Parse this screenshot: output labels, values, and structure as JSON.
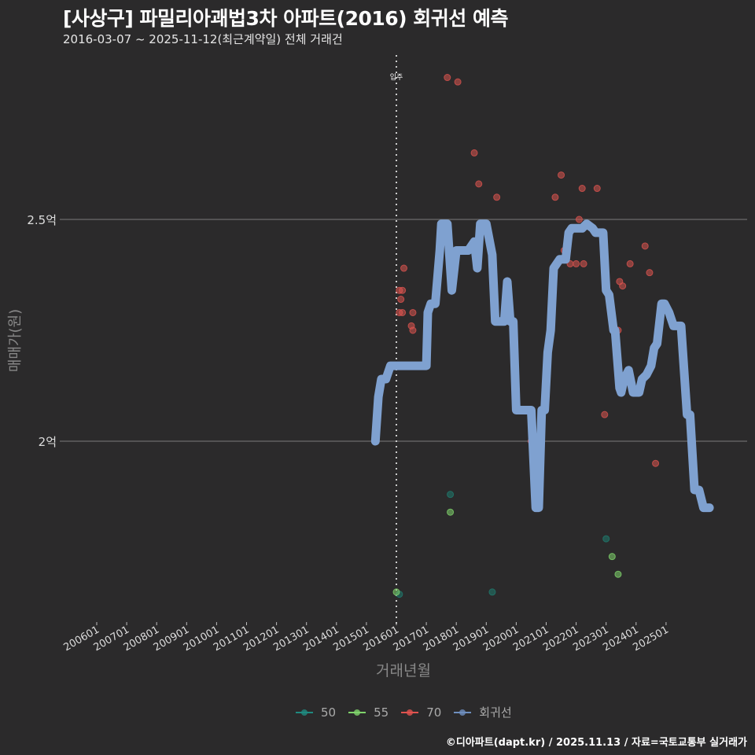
{
  "header": {
    "title": "[사상구] 파밀리아괘법3차 아파트(2016) 회귀선 예측",
    "subtitle": "2016-03-07 ~ 2025-11-12(최근계약일) 전체 거래건"
  },
  "caption": "©디아파트(dapt.kr) / 2025.11.13 / 자료=국토교통부 실거래가",
  "colors": {
    "background": "#2b2a2b",
    "s50": "#1f7a6e",
    "s55": "#7fd36b",
    "s70": "#d9534f",
    "regression": "#7fa1d0",
    "grid": "#6b6b6b",
    "vline": "#cccccc"
  },
  "legend": [
    {
      "label": "50",
      "color": "#1f8a80"
    },
    {
      "label": "55",
      "color": "#7fd36b"
    },
    {
      "label": "70",
      "color": "#e0534f"
    },
    {
      "label": "회귀선",
      "color": "#6f8fbf"
    }
  ],
  "chart_data": {
    "type": "scatter",
    "title": "[사상구] 파밀리아괘법3차 아파트(2016) 회귀선 예측",
    "subtitle": "2016-03-07 ~ 2025-11-12(최근계약일) 전체 거래건",
    "xlabel": "거래년월",
    "ylabel": "매매가(원)",
    "x_ticks": [
      "200601",
      "200701",
      "200801",
      "200901",
      "201001",
      "201101",
      "201201",
      "201301",
      "201401",
      "201501",
      "201601",
      "201701",
      "201801",
      "201901",
      "202001",
      "202101",
      "202201",
      "202301",
      "202401",
      "202501"
    ],
    "y_ticks": [
      {
        "label": "2억",
        "value": 2.0
      },
      {
        "label": "2.5억",
        "value": 2.5
      }
    ],
    "ylim": [
      1.6,
      2.9
    ],
    "units": "억원",
    "annotation": {
      "label": "입주",
      "x": 2016.0
    },
    "legend_position": "bottom",
    "series": [
      {
        "name": "50",
        "type": "scatter",
        "points": [
          [
            2017.8,
            1.88
          ],
          [
            2019.2,
            1.66
          ],
          [
            2023.0,
            1.78
          ],
          [
            2016.1,
            1.655
          ]
        ]
      },
      {
        "name": "55",
        "type": "scatter",
        "points": [
          [
            2017.8,
            1.84
          ],
          [
            2023.2,
            1.74
          ],
          [
            2023.4,
            1.7
          ],
          [
            2016.0,
            1.66
          ]
        ]
      },
      {
        "name": "70",
        "type": "scatter",
        "points": [
          [
            2017.7,
            2.82
          ],
          [
            2018.05,
            2.81
          ],
          [
            2018.6,
            2.65
          ],
          [
            2018.75,
            2.58
          ],
          [
            2019.35,
            2.55
          ],
          [
            2016.1,
            2.34
          ],
          [
            2016.2,
            2.34
          ],
          [
            2016.15,
            2.32
          ],
          [
            2016.1,
            2.29
          ],
          [
            2016.2,
            2.29
          ],
          [
            2016.25,
            2.39
          ],
          [
            2016.5,
            2.26
          ],
          [
            2016.55,
            2.25
          ],
          [
            2016.55,
            2.29
          ],
          [
            2020.5,
            2.0
          ],
          [
            2021.3,
            2.55
          ],
          [
            2021.5,
            2.6
          ],
          [
            2021.6,
            2.43
          ],
          [
            2021.8,
            2.4
          ],
          [
            2022.0,
            2.4
          ],
          [
            2022.25,
            2.4
          ],
          [
            2022.1,
            2.5
          ],
          [
            2022.2,
            2.57
          ],
          [
            2022.7,
            2.57
          ],
          [
            2022.95,
            2.06
          ],
          [
            2023.0,
            2.36
          ],
          [
            2023.4,
            2.25
          ],
          [
            2023.45,
            2.36
          ],
          [
            2023.55,
            2.35
          ],
          [
            2023.8,
            2.4
          ],
          [
            2024.3,
            2.44
          ],
          [
            2024.45,
            2.38
          ],
          [
            2024.65,
            1.95
          ]
        ]
      },
      {
        "name": "회귀선",
        "type": "line",
        "points": [
          [
            2015.3,
            2.0
          ],
          [
            2015.4,
            2.1
          ],
          [
            2015.5,
            2.14
          ],
          [
            2015.65,
            2.14
          ],
          [
            2015.8,
            2.17
          ],
          [
            2016.0,
            2.17
          ],
          [
            2017.0,
            2.17
          ],
          [
            2017.05,
            2.29
          ],
          [
            2017.15,
            2.31
          ],
          [
            2017.3,
            2.31
          ],
          [
            2017.45,
            2.43
          ],
          [
            2017.5,
            2.49
          ],
          [
            2017.7,
            2.49
          ],
          [
            2017.85,
            2.34
          ],
          [
            2017.95,
            2.4
          ],
          [
            2018.0,
            2.43
          ],
          [
            2018.4,
            2.43
          ],
          [
            2018.6,
            2.45
          ],
          [
            2018.7,
            2.39
          ],
          [
            2018.8,
            2.49
          ],
          [
            2019.0,
            2.49
          ],
          [
            2019.2,
            2.42
          ],
          [
            2019.3,
            2.27
          ],
          [
            2019.6,
            2.27
          ],
          [
            2019.7,
            2.36
          ],
          [
            2019.8,
            2.27
          ],
          [
            2019.9,
            2.27
          ],
          [
            2020.0,
            2.07
          ],
          [
            2020.5,
            2.07
          ],
          [
            2020.65,
            1.85
          ],
          [
            2020.75,
            1.85
          ],
          [
            2020.85,
            2.07
          ],
          [
            2020.95,
            2.07
          ],
          [
            2021.05,
            2.2
          ],
          [
            2021.15,
            2.25
          ],
          [
            2021.25,
            2.39
          ],
          [
            2021.45,
            2.41
          ],
          [
            2021.65,
            2.41
          ],
          [
            2021.75,
            2.47
          ],
          [
            2021.85,
            2.48
          ],
          [
            2022.2,
            2.48
          ],
          [
            2022.35,
            2.49
          ],
          [
            2022.55,
            2.48
          ],
          [
            2022.65,
            2.47
          ],
          [
            2022.9,
            2.47
          ],
          [
            2023.0,
            2.34
          ],
          [
            2023.1,
            2.33
          ],
          [
            2023.25,
            2.25
          ],
          [
            2023.3,
            2.25
          ],
          [
            2023.45,
            2.12
          ],
          [
            2023.5,
            2.11
          ],
          [
            2023.6,
            2.14
          ],
          [
            2023.75,
            2.16
          ],
          [
            2023.9,
            2.11
          ],
          [
            2024.1,
            2.11
          ],
          [
            2024.2,
            2.14
          ],
          [
            2024.35,
            2.15
          ],
          [
            2024.5,
            2.17
          ],
          [
            2024.6,
            2.21
          ],
          [
            2024.7,
            2.22
          ],
          [
            2024.85,
            2.31
          ],
          [
            2024.95,
            2.31
          ],
          [
            2025.1,
            2.29
          ],
          [
            2025.25,
            2.26
          ],
          [
            2025.5,
            2.26
          ],
          [
            2025.7,
            2.06
          ],
          [
            2025.8,
            2.06
          ],
          [
            2025.95,
            1.89
          ],
          [
            2026.1,
            1.89
          ],
          [
            2026.25,
            1.85
          ],
          [
            2026.45,
            1.85
          ]
        ]
      }
    ]
  },
  "axes": {
    "xlabel": "거래년월",
    "ylabel": "매매가(원)",
    "vline_label": "입주"
  }
}
